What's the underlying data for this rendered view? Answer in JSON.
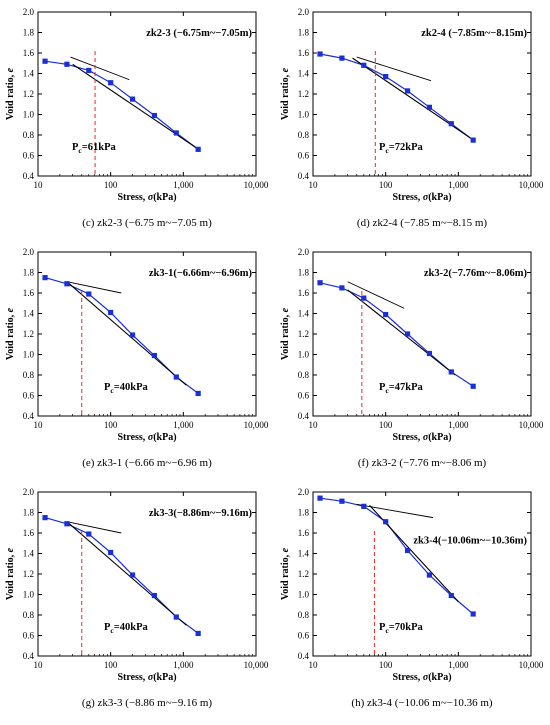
{
  "chart_data": [
    {
      "type": "line",
      "panel": "c",
      "title": "zk2-3 (−6.75m~−7.05m)",
      "caption": "(c) zk2-3 (−6.75 m~−7.05 m)",
      "xlabel": "Stress, σ(kPa)",
      "ylabel": "Void ratio, e",
      "xscale": "log",
      "xlim": [
        10,
        10000
      ],
      "ylim": [
        0.4,
        2.0
      ],
      "xticks": [
        "10",
        "100",
        "1,000",
        "10,000"
      ],
      "yticks": [
        "0.4",
        "0.6",
        "0.8",
        "1.0",
        "1.2",
        "1.4",
        "1.6",
        "1.8",
        "2.0"
      ],
      "series": [
        {
          "x": [
            12.5,
            25,
            50,
            100,
            200,
            400,
            800,
            1600
          ],
          "y": [
            1.52,
            1.49,
            1.43,
            1.31,
            1.15,
            0.99,
            0.82,
            0.66
          ]
        }
      ],
      "pc_label": "P",
      "pc_sub": "c",
      "pc_value": "=61kPa",
      "pc_kpa": 61,
      "tangent": [
        [
          28,
          1.56
        ],
        [
          180,
          1.34
        ]
      ],
      "steep": [
        [
          30,
          1.49
        ],
        [
          1700,
          0.65
        ]
      ],
      "title_pos": "top-right",
      "pc_pos": "bottom-left"
    },
    {
      "type": "line",
      "panel": "d",
      "title": "zk2-4 (−7.85m~−8.15m)",
      "caption": "(d) zk2-4 (−7.85 m~−8.15 m)",
      "xlabel": "Stress, σ(kPa)",
      "ylabel": "Void ratio, e",
      "xscale": "log",
      "xlim": [
        10,
        10000
      ],
      "ylim": [
        0.4,
        2.0
      ],
      "xticks": [
        "10",
        "100",
        "1,000",
        "10,000"
      ],
      "yticks": [
        "0.4",
        "0.6",
        "0.8",
        "1.0",
        "1.2",
        "1.4",
        "1.6",
        "1.8",
        "2.0"
      ],
      "series": [
        {
          "x": [
            12.5,
            25,
            50,
            100,
            200,
            400,
            800,
            1600
          ],
          "y": [
            1.59,
            1.55,
            1.48,
            1.37,
            1.23,
            1.07,
            0.91,
            0.75
          ]
        }
      ],
      "pc_label": "P",
      "pc_sub": "c",
      "pc_value": "=72kPa",
      "pc_kpa": 72,
      "tangent": [
        [
          40,
          1.56
        ],
        [
          420,
          1.33
        ]
      ],
      "steep": [
        [
          35,
          1.55
        ],
        [
          1700,
          0.74
        ]
      ],
      "title_pos": "top-right",
      "pc_pos": "bottom-center"
    },
    {
      "type": "line",
      "panel": "e",
      "title": "zk3-1(−6.66m~−6.96m)",
      "caption": "(e) zk3-1 (−6.66 m~−6.96 m)",
      "xlabel": "Stress, σ(kPa)",
      "ylabel": "Void ratio, e",
      "xscale": "log",
      "xlim": [
        10,
        10000
      ],
      "ylim": [
        0.4,
        2.0
      ],
      "xticks": [
        "10",
        "100",
        "1,000",
        "10,000"
      ],
      "yticks": [
        "0.4",
        "0.6",
        "0.8",
        "1.0",
        "1.2",
        "1.4",
        "1.6",
        "1.8",
        "2.0"
      ],
      "series": [
        {
          "x": [
            12.5,
            25,
            50,
            100,
            200,
            400,
            800,
            1600
          ],
          "y": [
            1.75,
            1.69,
            1.59,
            1.41,
            1.19,
            0.99,
            0.78,
            0.62
          ]
        }
      ],
      "pc_label": "P",
      "pc_sub": "c",
      "pc_value": "=40kPa",
      "pc_kpa": 40,
      "tangent": [
        [
          25,
          1.71
        ],
        [
          140,
          1.6
        ]
      ],
      "steep": [
        [
          25,
          1.71
        ],
        [
          1100,
          0.7
        ]
      ],
      "title_pos": "top-right",
      "pc_pos": "bottom-center"
    },
    {
      "type": "line",
      "panel": "f",
      "title": "zk3-2(−7.76m~−8.06m)",
      "caption": "(f) zk3-2 (−7.76 m~−8.06 m)",
      "xlabel": "Stress, σ(kPa)",
      "ylabel": "Void ratio, e",
      "xscale": "log",
      "xlim": [
        10,
        10000
      ],
      "ylim": [
        0.4,
        2.0
      ],
      "xticks": [
        "10",
        "100",
        "1,000",
        "10,000"
      ],
      "yticks": [
        "0.4",
        "0.6",
        "0.8",
        "1.0",
        "1.2",
        "1.4",
        "1.6",
        "1.8",
        "2.0"
      ],
      "series": [
        {
          "x": [
            12.5,
            25,
            50,
            100,
            200,
            400,
            800,
            1600
          ],
          "y": [
            1.7,
            1.65,
            1.55,
            1.39,
            1.2,
            1.01,
            0.83,
            0.69
          ]
        }
      ],
      "pc_label": "P",
      "pc_sub": "c",
      "pc_value": "=47kPa",
      "pc_kpa": 47,
      "tangent": [
        [
          30,
          1.71
        ],
        [
          180,
          1.45
        ]
      ],
      "steep": [
        [
          30,
          1.63
        ],
        [
          900,
          0.8
        ]
      ],
      "title_pos": "top-right",
      "pc_pos": "bottom-center"
    },
    {
      "type": "line",
      "panel": "g",
      "title": "zk3-3(−8.86m~−9.16m)",
      "caption": "(g) zk3-3 (−8.86 m~−9.16 m)",
      "xlabel": "Stress, σ(kPa)",
      "ylabel": "Void ratio, e",
      "xscale": "log",
      "xlim": [
        10,
        10000
      ],
      "ylim": [
        0.4,
        2.0
      ],
      "xticks": [
        "10",
        "100",
        "1,000",
        "10,000"
      ],
      "yticks": [
        "0.4",
        "0.6",
        "0.8",
        "1.0",
        "1.2",
        "1.4",
        "1.6",
        "1.8",
        "2.0"
      ],
      "series": [
        {
          "x": [
            12.5,
            25,
            50,
            100,
            200,
            400,
            800,
            1600
          ],
          "y": [
            1.75,
            1.69,
            1.59,
            1.41,
            1.19,
            0.99,
            0.78,
            0.62
          ]
        }
      ],
      "pc_label": "P",
      "pc_sub": "c",
      "pc_value": "=40kPa",
      "pc_kpa": 40,
      "tangent": [
        [
          25,
          1.71
        ],
        [
          140,
          1.6
        ]
      ],
      "steep": [
        [
          25,
          1.71
        ],
        [
          1100,
          0.7
        ]
      ],
      "title_pos": "top-right",
      "pc_pos": "bottom-center"
    },
    {
      "type": "line",
      "panel": "h",
      "title": "zk3-4(−10.06m~−10.36m)",
      "caption": "(h) zk3-4 (−10.06 m~−10.36 m)",
      "xlabel": "Stress, σ(kPa)",
      "ylabel": "Void ratio, e",
      "xscale": "log",
      "xlim": [
        10,
        10000
      ],
      "ylim": [
        0.4,
        2.0
      ],
      "xticks": [
        "10",
        "100",
        "1,000",
        "10,000"
      ],
      "yticks": [
        "0.4",
        "0.6",
        "0.8",
        "1.0",
        "1.2",
        "1.4",
        "1.6",
        "1.8",
        "2.0"
      ],
      "series": [
        {
          "x": [
            12.5,
            25,
            50,
            100,
            200,
            400,
            800,
            1600
          ],
          "y": [
            1.94,
            1.91,
            1.86,
            1.71,
            1.43,
            1.19,
            0.99,
            0.81
          ]
        }
      ],
      "pc_label": "P",
      "pc_sub": "c",
      "pc_value": "=70kPa",
      "pc_kpa": 70,
      "tangent": [
        [
          40,
          1.88
        ],
        [
          450,
          1.75
        ]
      ],
      "steep": [
        [
          60,
          1.87
        ],
        [
          1000,
          0.93
        ]
      ],
      "title_pos": "middle-right",
      "pc_pos": "bottom-center"
    }
  ],
  "colors": {
    "data_line": "#1a2fd6",
    "marker": "#1a2fd6",
    "fit_line": "#000000",
    "pc_line": "#ff2020",
    "axis": "#000000"
  }
}
